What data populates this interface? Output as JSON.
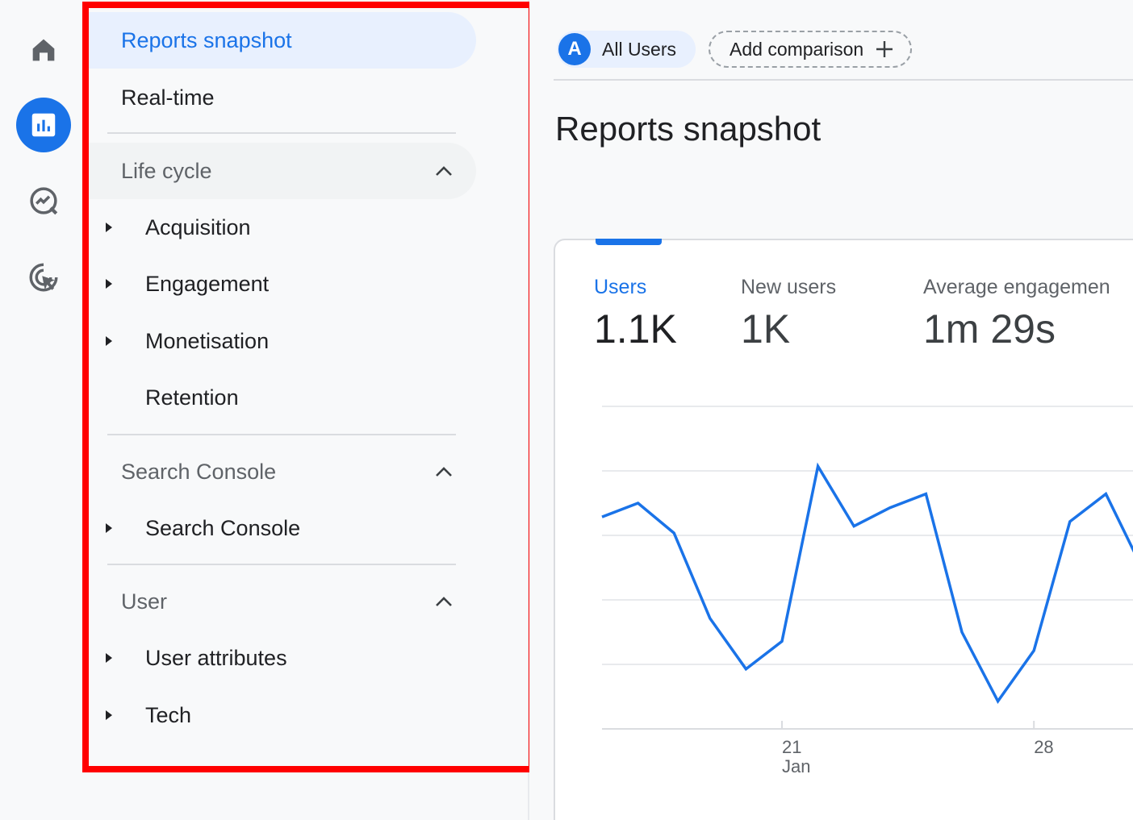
{
  "sidebar": {
    "reports_snapshot": "Reports snapshot",
    "realtime": "Real-time",
    "sections": [
      {
        "title": "Life cycle",
        "items": [
          {
            "label": "Acquisition",
            "expandable": true
          },
          {
            "label": "Engagement",
            "expandable": true
          },
          {
            "label": "Monetisation",
            "expandable": true
          },
          {
            "label": "Retention",
            "expandable": false
          }
        ]
      },
      {
        "title": "Search Console",
        "items": [
          {
            "label": "Search Console",
            "expandable": true
          }
        ]
      },
      {
        "title": "User",
        "items": [
          {
            "label": "User attributes",
            "expandable": true
          },
          {
            "label": "Tech",
            "expandable": true
          }
        ]
      }
    ]
  },
  "rail": {
    "icons": [
      "home-icon",
      "reports-icon",
      "explore-icon",
      "advertising-icon"
    ]
  },
  "header": {
    "audience_avatar": "A",
    "audience_label": "All Users",
    "add_comparison": "Add comparison"
  },
  "main": {
    "title": "Reports snapshot",
    "metrics": [
      {
        "label": "Users",
        "value": "1.1K"
      },
      {
        "label": "New users",
        "value": "1K"
      },
      {
        "label": "Average engagemen",
        "value": "1m 29s"
      }
    ]
  },
  "chart_data": {
    "type": "line",
    "x_tick_labels": [
      "21",
      "28"
    ],
    "x_month_label": "Jan",
    "series": [
      {
        "values": [
          62,
          68,
          55,
          18,
          -4,
          8,
          84,
          58,
          66,
          72,
          12,
          -18,
          4,
          60,
          72,
          40
        ]
      }
    ],
    "color": "#1a73e8",
    "grid": true
  },
  "colors": {
    "accent": "#1a73e8",
    "highlight": "#ff0000"
  }
}
